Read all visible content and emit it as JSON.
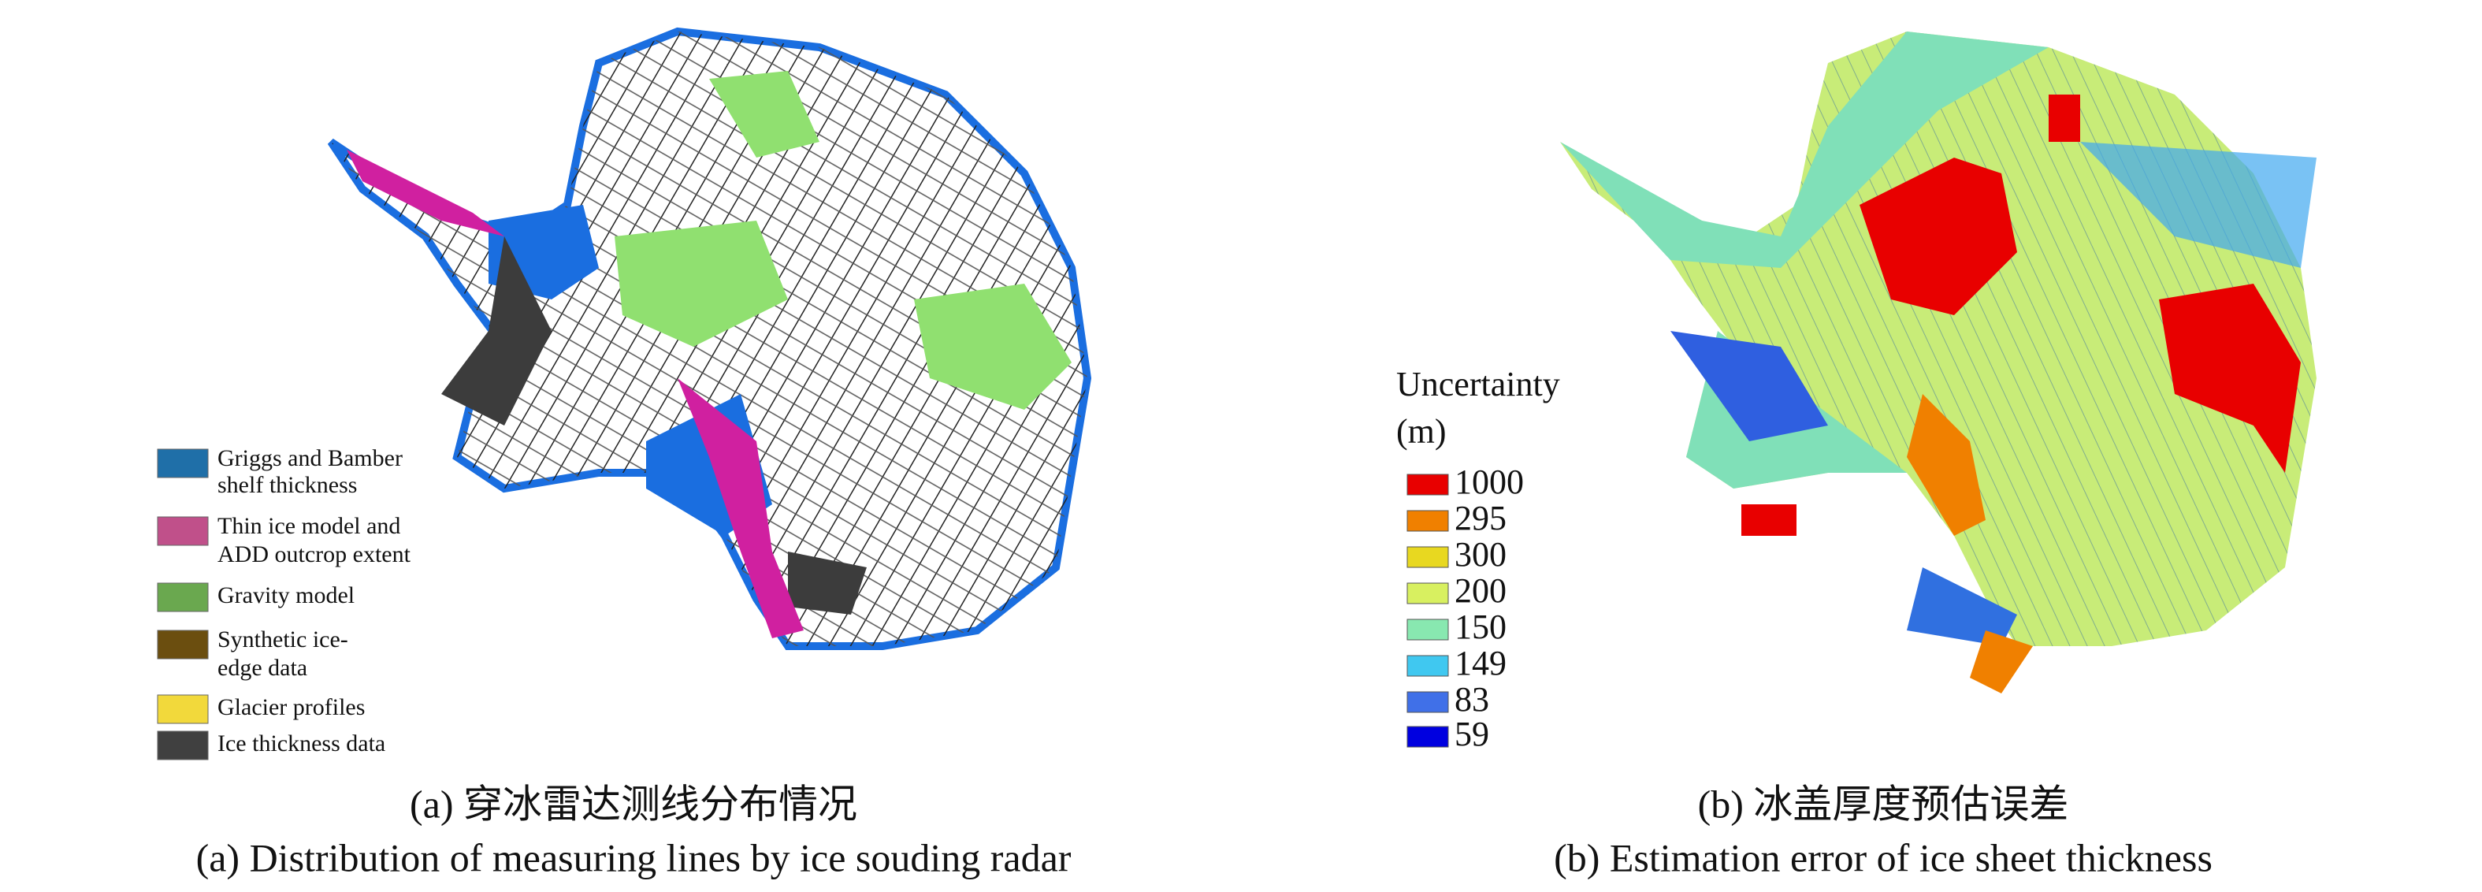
{
  "panel_a": {
    "legend": [
      [
        "Griggs and Bamber",
        "shelf thickness"
      ],
      [
        "Thin ice model and",
        "ADD outcrop extent"
      ],
      [
        "Gravity model"
      ],
      [
        "Synthetic ice-",
        "edge data"
      ],
      [
        "Glacier profiles"
      ],
      [
        "Ice thickness data"
      ]
    ],
    "caption_zh": "(a) 穿冰雷达测线分布情况",
    "caption_en": "(a) Distribution of measuring lines by ice souding radar"
  },
  "panel_b": {
    "legend_title": [
      "Uncertainty",
      "(m)"
    ],
    "legend": [
      "1000",
      "295",
      "300",
      "200",
      "150",
      "149",
      "83",
      "59"
    ],
    "caption_zh": "(b) 冰盖厚度预估误差",
    "caption_en": "(b) Estimation error of ice sheet thickness"
  }
}
